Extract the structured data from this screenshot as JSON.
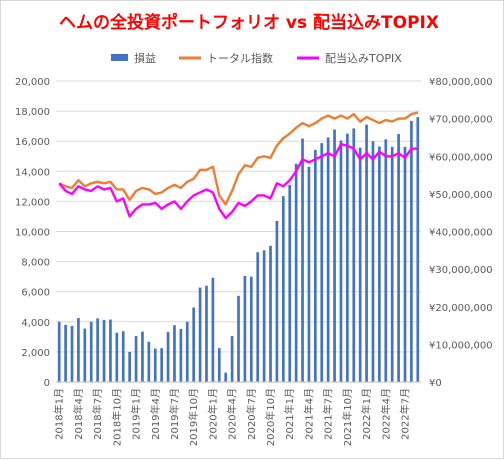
{
  "chart_data": {
    "type": "bar",
    "title": "ヘムの全投資ポートフォリオ vs 配当込みTOPIX",
    "xlabel": "",
    "ylabel": "",
    "ylim": [
      0,
      20000
    ],
    "y2lim": [
      0,
      80000000
    ],
    "y_ticks": [
      "0",
      "2,000",
      "4,000",
      "6,000",
      "8,000",
      "10,000",
      "12,000",
      "14,000",
      "16,000",
      "18,000",
      "20,000"
    ],
    "y2_ticks": [
      "¥0",
      "¥10,000,000",
      "¥20,000,000",
      "¥30,000,000",
      "¥40,000,000",
      "¥50,000,000",
      "¥60,000,000",
      "¥70,000,000",
      "¥80,000,000"
    ],
    "grid": true,
    "legend_position": "top",
    "x_tick_labels": [
      "2018年1月",
      "2018年4月",
      "2018年7月",
      "2018年10月",
      "2019年1月",
      "2019年4月",
      "2019年7月",
      "2019年10月",
      "2020年1月",
      "2020年4月",
      "2020年7月",
      "2020年10月",
      "2021年1月",
      "2021年4月",
      "2021年7月",
      "2021年10月",
      "2022年1月",
      "2022年4月",
      "2022年7月"
    ],
    "categories_count": 57,
    "series": [
      {
        "name": "損益",
        "type": "bar",
        "axis": "right",
        "color": "#4472c4",
        "values": [
          16000000,
          15200000,
          14900000,
          17000000,
          14200000,
          16000000,
          16900000,
          16500000,
          16600000,
          13100000,
          13500000,
          8000000,
          12200000,
          13400000,
          10700000,
          8900000,
          9000000,
          13300000,
          15100000,
          14100000,
          16000000,
          19800000,
          25100000,
          25600000,
          27700000,
          9000000,
          2500000,
          12200000,
          22900000,
          28200000,
          28000000,
          34500000,
          35000000,
          36200000,
          42800000,
          49400000,
          52400000,
          58000000,
          64700000,
          57200000,
          61700000,
          63500000,
          65000000,
          67100000,
          64200000,
          66000000,
          67400000,
          62300000,
          68400000,
          64000000,
          62600000,
          64500000,
          62500000,
          65900000,
          62500000,
          69400000,
          70400000
        ]
      },
      {
        "name": "トータル指数",
        "type": "line",
        "axis": "left",
        "color": "#ed7d31",
        "values": [
          13200,
          13000,
          12900,
          13400,
          13000,
          13200,
          13300,
          13200,
          13300,
          12800,
          12800,
          12100,
          12700,
          12900,
          12800,
          12500,
          12600,
          12900,
          13100,
          12900,
          13300,
          13500,
          14100,
          14100,
          14300,
          12400,
          11800,
          12700,
          13800,
          14400,
          14300,
          14900,
          15000,
          14900,
          15700,
          16200,
          16500,
          16900,
          17200,
          17000,
          17200,
          17500,
          17700,
          17500,
          17700,
          17500,
          17800,
          17300,
          17600,
          17400,
          17200,
          17400,
          17300,
          17500,
          17500,
          17800,
          17900
        ]
      },
      {
        "name": "配当込みTOPIX",
        "type": "line",
        "axis": "left",
        "color": "#ff00ff",
        "values": [
          13200,
          12700,
          12500,
          13000,
          12800,
          12700,
          13000,
          12800,
          12900,
          12000,
          12200,
          11000,
          11500,
          11800,
          11800,
          11900,
          11500,
          11800,
          12000,
          11500,
          12000,
          12400,
          12600,
          12800,
          12600,
          11500,
          10900,
          11300,
          11900,
          11700,
          12000,
          12400,
          12400,
          12200,
          13200,
          13000,
          13400,
          14000,
          14800,
          14600,
          14800,
          15000,
          15200,
          15000,
          15800,
          15700,
          15500,
          14800,
          15200,
          14800,
          15300,
          15000,
          15000,
          15200,
          14900,
          15500,
          15500
        ]
      }
    ]
  }
}
